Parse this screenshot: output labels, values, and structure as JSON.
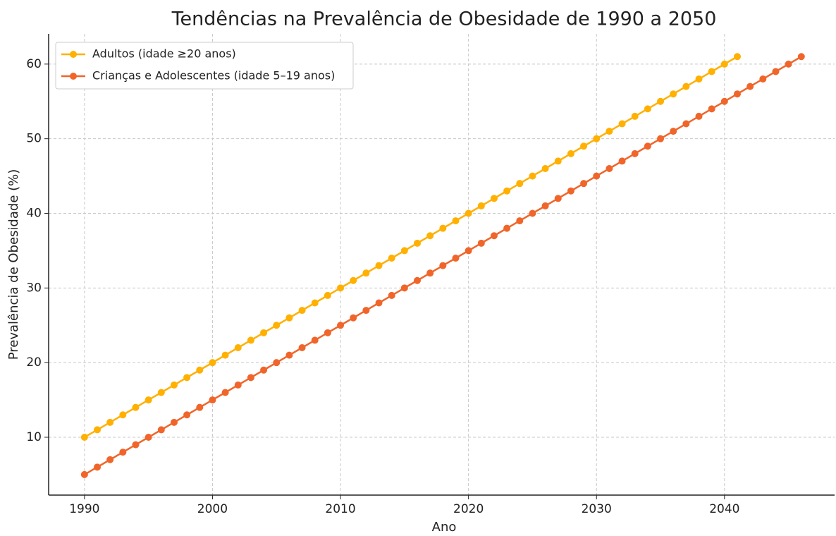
{
  "chart_data": {
    "type": "line",
    "title": "Tendências na Prevalência de Obesidade de 1990 a 2050",
    "xlabel": "Ano",
    "ylabel": "Prevalência de Obesidade (%)",
    "x": [
      1990,
      1991,
      1992,
      1993,
      1994,
      1995,
      1996,
      1997,
      1998,
      1999,
      2000,
      2001,
      2002,
      2003,
      2004,
      2005,
      2006,
      2007,
      2008,
      2009,
      2010,
      2011,
      2012,
      2013,
      2014,
      2015,
      2016,
      2017,
      2018,
      2019,
      2020,
      2021,
      2022,
      2023,
      2024,
      2025,
      2026,
      2027,
      2028,
      2029,
      2030,
      2031,
      2032,
      2033,
      2034,
      2035,
      2036,
      2037,
      2038,
      2039,
      2040,
      2041,
      2042,
      2043,
      2044,
      2045,
      2046
    ],
    "series": [
      {
        "name": "Adultos (idade ≥20 anos)",
        "color": "#ffb000",
        "values": [
          10,
          11,
          12,
          13,
          14,
          15,
          16,
          17,
          18,
          19,
          20,
          21,
          22,
          23,
          24,
          25,
          26,
          27,
          28,
          29,
          30,
          31,
          32,
          33,
          34,
          35,
          36,
          37,
          38,
          39,
          40,
          41,
          42,
          43,
          44,
          45,
          46,
          47,
          48,
          49,
          50,
          51,
          52,
          53,
          54,
          55,
          56,
          57,
          58,
          59,
          60,
          61,
          null,
          null,
          null,
          null,
          null
        ]
      },
      {
        "name": "Crianças e Adolescentes (idade 5–19 anos)",
        "color": "#f0652a",
        "values": [
          5,
          6,
          7,
          8,
          9,
          10,
          11,
          12,
          13,
          14,
          15,
          16,
          17,
          18,
          19,
          20,
          21,
          22,
          23,
          24,
          25,
          26,
          27,
          28,
          29,
          30,
          31,
          32,
          33,
          34,
          35,
          36,
          37,
          38,
          39,
          40,
          41,
          42,
          43,
          44,
          45,
          46,
          47,
          48,
          49,
          50,
          51,
          52,
          53,
          54,
          55,
          56,
          57,
          58,
          59,
          60,
          61
        ]
      }
    ],
    "xlim": [
      1987.2,
      2048.6
    ],
    "xticks": [
      1990,
      2000,
      2010,
      2020,
      2030,
      2040
    ],
    "ylim": [
      2.25,
      64.05
    ],
    "yticks": [
      10,
      20,
      30,
      40,
      50,
      60
    ],
    "grid": true,
    "legend": "upper left"
  }
}
